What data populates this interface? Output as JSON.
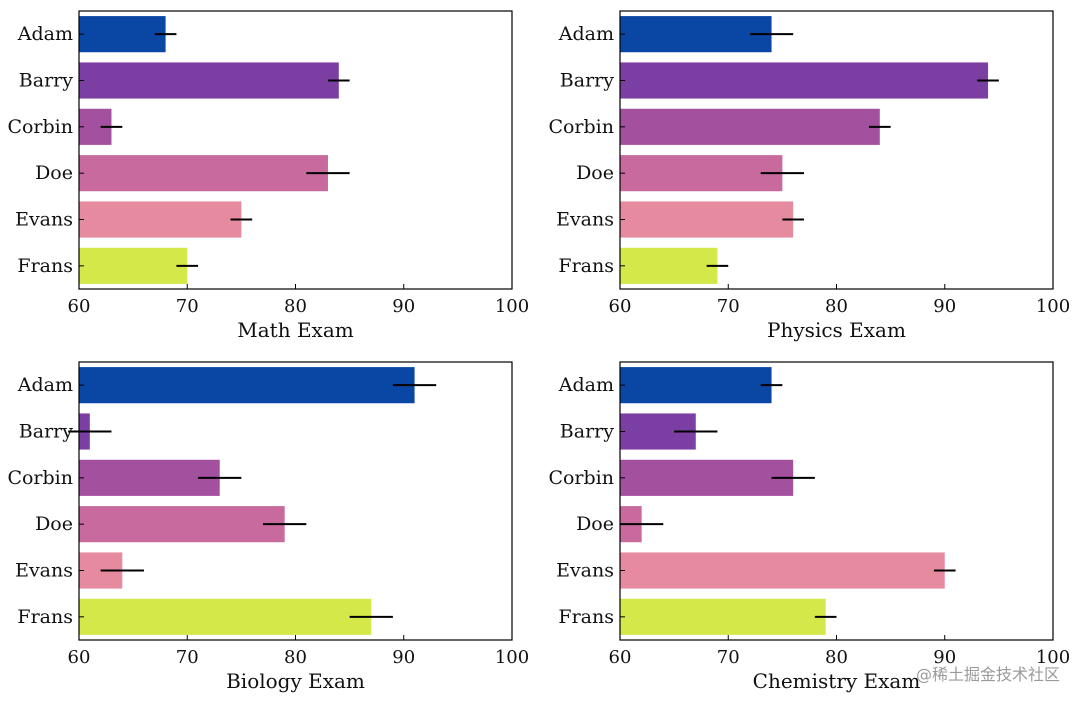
{
  "colors": [
    "#0a47a4",
    "#7b3fa3",
    "#a3519f",
    "#c86a9e",
    "#e68aa0",
    "#d4e84a"
  ],
  "watermark": "@稀土掘金技术社区",
  "chart_data": [
    {
      "type": "bar",
      "orientation": "horizontal",
      "categories": [
        "Adam",
        "Barry",
        "Corbin",
        "Doe",
        "Evans",
        "Frans"
      ],
      "values": [
        68,
        84,
        63,
        83,
        75,
        70
      ],
      "errors": [
        1,
        1,
        1,
        2,
        1,
        1
      ],
      "xlabel": "Math Exam",
      "xlim": [
        60,
        100
      ],
      "xticks": [
        60,
        70,
        80,
        90,
        100
      ]
    },
    {
      "type": "bar",
      "orientation": "horizontal",
      "categories": [
        "Adam",
        "Barry",
        "Corbin",
        "Doe",
        "Evans",
        "Frans"
      ],
      "values": [
        74,
        94,
        84,
        75,
        76,
        69
      ],
      "errors": [
        2,
        1,
        1,
        2,
        1,
        1
      ],
      "xlabel": "Physics Exam",
      "xlim": [
        60,
        100
      ],
      "xticks": [
        60,
        70,
        80,
        90,
        100
      ]
    },
    {
      "type": "bar",
      "orientation": "horizontal",
      "categories": [
        "Adam",
        "Barry",
        "Corbin",
        "Doe",
        "Evans",
        "Frans"
      ],
      "values": [
        91,
        61,
        73,
        79,
        64,
        87
      ],
      "errors": [
        2,
        2,
        2,
        2,
        2,
        2
      ],
      "xlabel": "Biology Exam",
      "xlim": [
        60,
        100
      ],
      "xticks": [
        60,
        70,
        80,
        90,
        100
      ]
    },
    {
      "type": "bar",
      "orientation": "horizontal",
      "categories": [
        "Adam",
        "Barry",
        "Corbin",
        "Doe",
        "Evans",
        "Frans"
      ],
      "values": [
        74,
        67,
        76,
        62,
        90,
        79
      ],
      "errors": [
        1,
        2,
        2,
        2,
        1,
        1
      ],
      "xlabel": "Chemistry Exam",
      "xlim": [
        60,
        100
      ],
      "xticks": [
        60,
        70,
        80,
        90,
        100
      ]
    }
  ]
}
